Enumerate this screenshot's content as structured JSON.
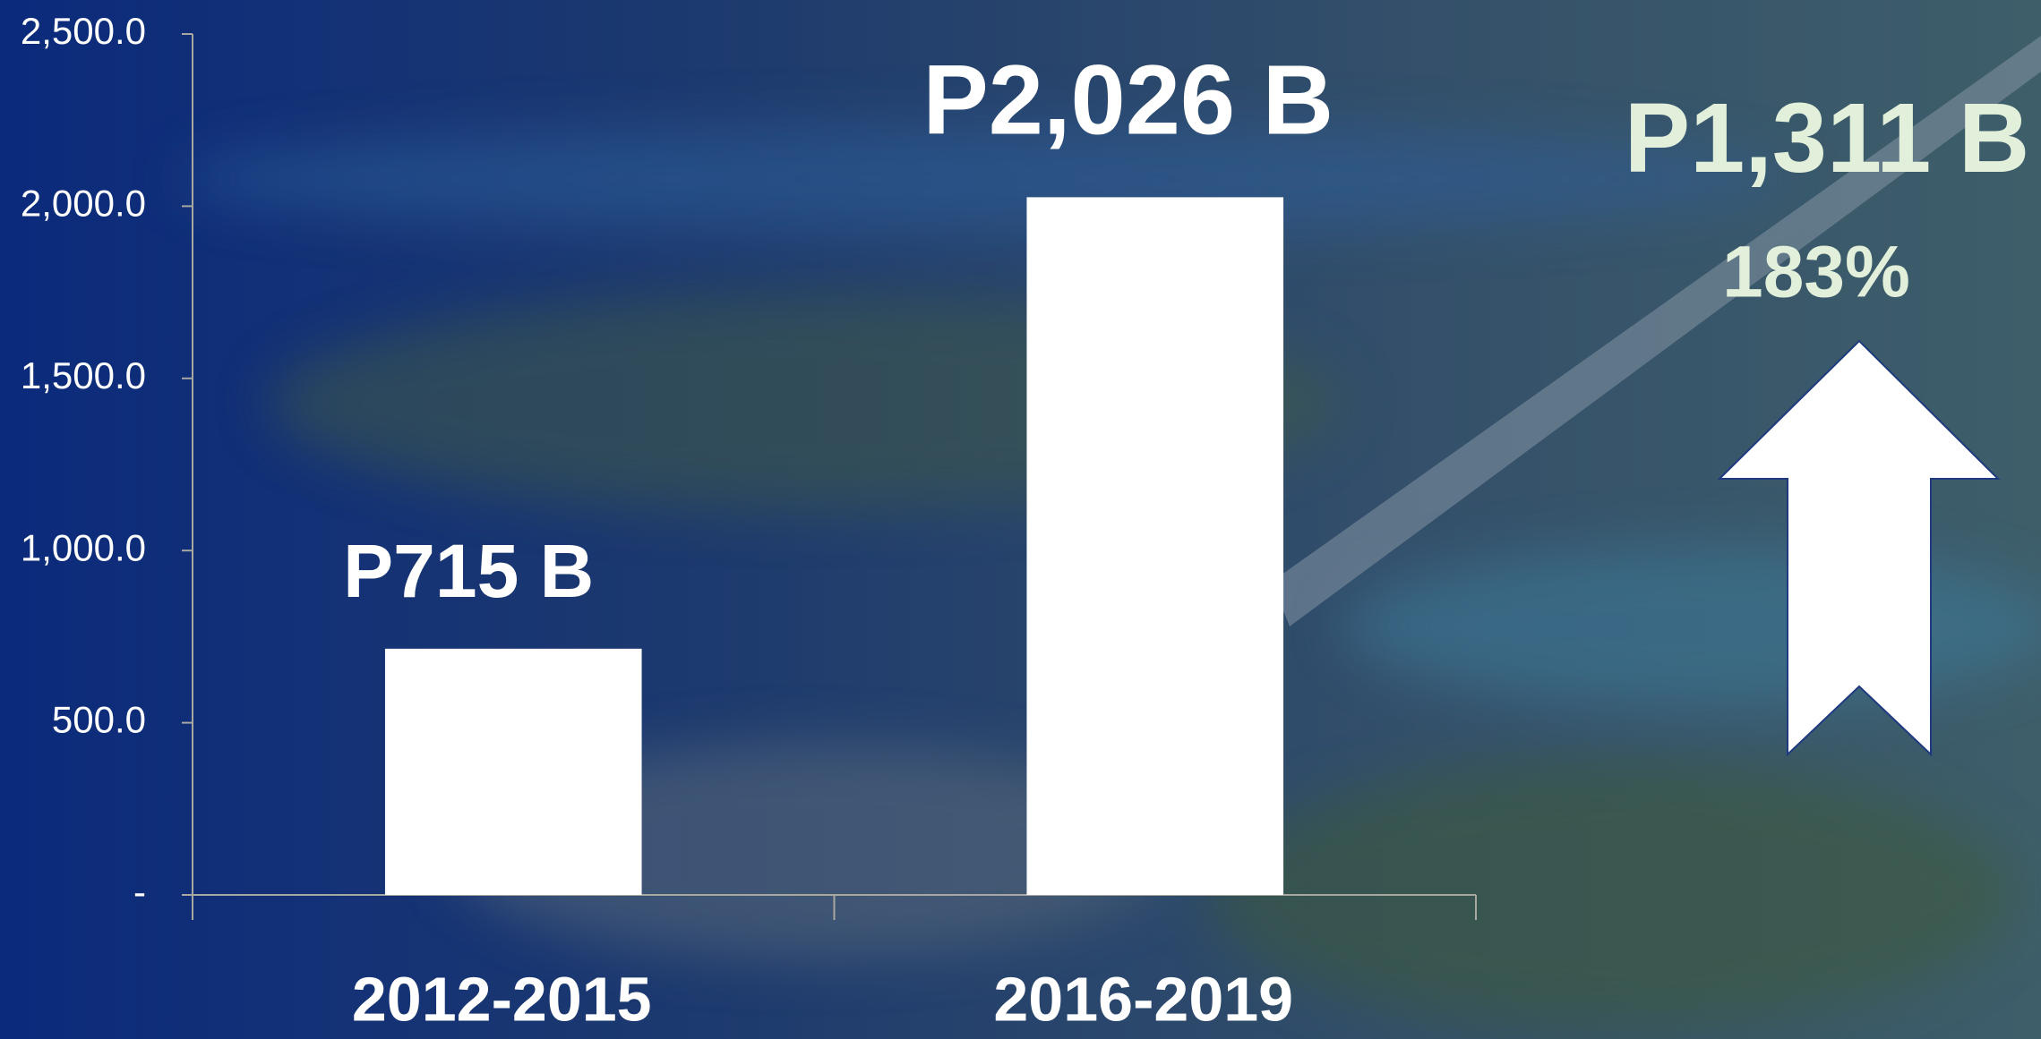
{
  "chart_data": {
    "type": "bar",
    "categories": [
      "2012-2015",
      "2016-2019"
    ],
    "values": [
      715,
      2026
    ],
    "value_labels": [
      "P715 B",
      "P2,026 B"
    ],
    "color": "#ffffff",
    "ylim": [
      0,
      2500
    ],
    "yticks": [
      {
        "value": 0,
        "label": "-"
      },
      {
        "value": 500,
        "label": "500.0"
      },
      {
        "value": 1000,
        "label": "1,000.0"
      },
      {
        "value": 1500,
        "label": "1,500.0"
      },
      {
        "value": 2000,
        "label": "2,000.0"
      },
      {
        "value": 2500,
        "label": "2,500.0"
      }
    ],
    "annotations": [
      "P1,311 B",
      "183%"
    ]
  }
}
